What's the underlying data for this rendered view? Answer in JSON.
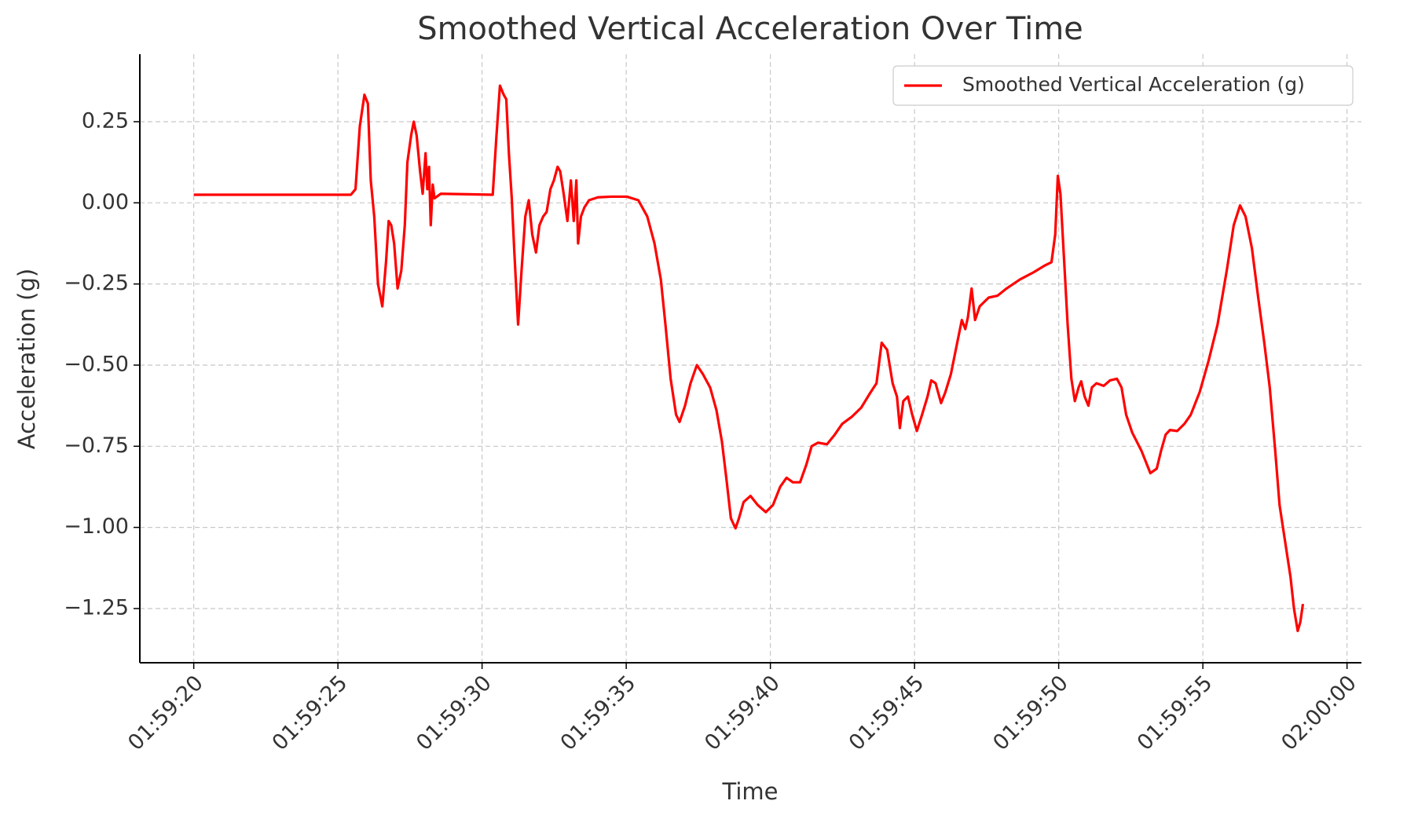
{
  "chart_data": {
    "type": "line",
    "title": "Smoothed Vertical Acceleration Over Time",
    "x_label": "Time",
    "y_label": "Acceleration (g)",
    "x": [
      7160,
      7165.45,
      7165.61,
      7165.76,
      7165.92,
      7166.04,
      7166.14,
      7166.26,
      7166.39,
      7166.54,
      7166.67,
      7166.76,
      7166.85,
      7166.95,
      7167.07,
      7167.2,
      7167.32,
      7167.41,
      7167.54,
      7167.63,
      7167.73,
      7167.85,
      7167.94,
      7168.04,
      7168.1,
      7168.16,
      7168.22,
      7168.29,
      7168.35,
      7168.57,
      7170.37,
      7170.5,
      7170.62,
      7170.75,
      7170.84,
      7170.93,
      7171.03,
      7171.12,
      7171.25,
      7171.37,
      7171.5,
      7171.62,
      7171.74,
      7171.87,
      7171.99,
      7172.12,
      7172.24,
      7172.37,
      7172.49,
      7172.62,
      7172.71,
      7172.83,
      7172.96,
      7173.08,
      7173.18,
      7173.27,
      7173.33,
      7173.43,
      7173.55,
      7173.71,
      7174.02,
      7174.49,
      7175.02,
      7175.42,
      7175.73,
      7175.98,
      7176.2,
      7176.36,
      7176.54,
      7176.73,
      7176.85,
      7177.04,
      7177.23,
      7177.45,
      7177.66,
      7177.91,
      7178.13,
      7178.32,
      7178.47,
      7178.63,
      7178.79,
      7178.91,
      7179.07,
      7179.31,
      7179.56,
      7179.84,
      7180.09,
      7180.34,
      7180.56,
      7180.78,
      7181.03,
      7181.25,
      7181.43,
      7181.65,
      7181.96,
      7182.21,
      7182.49,
      7182.84,
      7183.15,
      7183.46,
      7183.68,
      7183.86,
      7184.05,
      7184.24,
      7184.39,
      7184.49,
      7184.61,
      7184.77,
      7184.92,
      7185.08,
      7185.26,
      7185.45,
      7185.58,
      7185.73,
      7185.92,
      7186.07,
      7186.26,
      7186.48,
      7186.64,
      7186.76,
      7186.85,
      7186.98,
      7187.1,
      7187.26,
      7187.57,
      7187.88,
      7188.19,
      7188.66,
      7189.13,
      7189.5,
      7189.75,
      7189.88,
      7189.97,
      7190.06,
      7190.19,
      7190.31,
      7190.44,
      7190.56,
      7190.69,
      7190.78,
      7190.9,
      7191.03,
      7191.15,
      7191.31,
      7191.56,
      7191.78,
      7192.02,
      7192.18,
      7192.34,
      7192.55,
      7192.87,
      7193.18,
      7193.4,
      7193.55,
      7193.71,
      7193.86,
      7194.11,
      7194.36,
      7194.58,
      7194.89,
      7195.2,
      7195.51,
      7195.83,
      7196.07,
      7196.29,
      7196.48,
      7196.7,
      7196.92,
      7197.13,
      7197.32,
      7197.51,
      7197.66,
      7197.85,
      7198.04,
      7198.16,
      7198.29,
      7198.38,
      7198.47
    ],
    "series": [
      {
        "name": "Smoothed Vertical Acceleration (g)",
        "color": "#ff0000",
        "values": [
          0.025,
          0.025,
          0.042,
          0.236,
          0.333,
          0.306,
          0.069,
          -0.042,
          -0.25,
          -0.319,
          -0.181,
          -0.056,
          -0.069,
          -0.125,
          -0.264,
          -0.208,
          -0.069,
          0.125,
          0.208,
          0.25,
          0.208,
          0.097,
          0.028,
          0.153,
          0.042,
          0.111,
          -0.069,
          0.056,
          0.014,
          0.028,
          0.025,
          0.208,
          0.361,
          0.333,
          0.319,
          0.153,
          0.014,
          -0.153,
          -0.375,
          -0.208,
          -0.042,
          0.008,
          -0.097,
          -0.153,
          -0.069,
          -0.042,
          -0.028,
          0.042,
          0.069,
          0.111,
          0.097,
          0.028,
          -0.056,
          0.069,
          -0.056,
          0.069,
          -0.125,
          -0.042,
          -0.014,
          0.008,
          0.017,
          0.019,
          0.019,
          0.008,
          -0.042,
          -0.125,
          -0.236,
          -0.375,
          -0.542,
          -0.653,
          -0.675,
          -0.625,
          -0.556,
          -0.5,
          -0.528,
          -0.569,
          -0.639,
          -0.736,
          -0.847,
          -0.972,
          -1.003,
          -0.972,
          -0.922,
          -0.903,
          -0.931,
          -0.953,
          -0.931,
          -0.875,
          -0.847,
          -0.861,
          -0.861,
          -0.806,
          -0.75,
          -0.739,
          -0.744,
          -0.717,
          -0.681,
          -0.658,
          -0.631,
          -0.586,
          -0.556,
          -0.431,
          -0.453,
          -0.556,
          -0.597,
          -0.694,
          -0.611,
          -0.597,
          -0.653,
          -0.703,
          -0.653,
          -0.597,
          -0.547,
          -0.556,
          -0.617,
          -0.583,
          -0.528,
          -0.431,
          -0.361,
          -0.389,
          -0.353,
          -0.264,
          -0.361,
          -0.319,
          -0.292,
          -0.286,
          -0.264,
          -0.236,
          -0.214,
          -0.194,
          -0.183,
          -0.097,
          0.083,
          0.028,
          -0.181,
          -0.375,
          -0.542,
          -0.611,
          -0.569,
          -0.55,
          -0.597,
          -0.625,
          -0.569,
          -0.556,
          -0.564,
          -0.547,
          -0.542,
          -0.569,
          -0.653,
          -0.708,
          -0.764,
          -0.833,
          -0.819,
          -0.764,
          -0.714,
          -0.7,
          -0.703,
          -0.681,
          -0.653,
          -0.583,
          -0.486,
          -0.375,
          -0.208,
          -0.069,
          -0.008,
          -0.042,
          -0.139,
          -0.292,
          -0.431,
          -0.569,
          -0.764,
          -0.931,
          -1.042,
          -1.153,
          -1.25,
          -1.319,
          -1.292,
          -1.236
        ]
      }
    ],
    "xlim": [
      7158.13,
      7200.5
    ],
    "xticks": [
      {
        "value": 7160,
        "label": "01:59:20"
      },
      {
        "value": 7165,
        "label": "01:59:25"
      },
      {
        "value": 7170,
        "label": "01:59:30"
      },
      {
        "value": 7175,
        "label": "01:59:35"
      },
      {
        "value": 7180,
        "label": "01:59:40"
      },
      {
        "value": 7185,
        "label": "01:59:45"
      },
      {
        "value": 7190,
        "label": "01:59:50"
      },
      {
        "value": 7195,
        "label": "01:59:55"
      },
      {
        "value": 7200,
        "label": "02:00:00"
      }
    ],
    "ylim": [
      -1.417,
      0.458
    ],
    "yticks": [
      {
        "value": -1.25,
        "label": "−1.25"
      },
      {
        "value": -1,
        "label": "−1.00"
      },
      {
        "value": -0.75,
        "label": "−0.75"
      },
      {
        "value": -0.5,
        "label": "−0.50"
      },
      {
        "value": -0.25,
        "label": "−0.25"
      },
      {
        "value": 0,
        "label": "0.00"
      },
      0.25
    ],
    "grid": true,
    "legend": "upper right"
  }
}
